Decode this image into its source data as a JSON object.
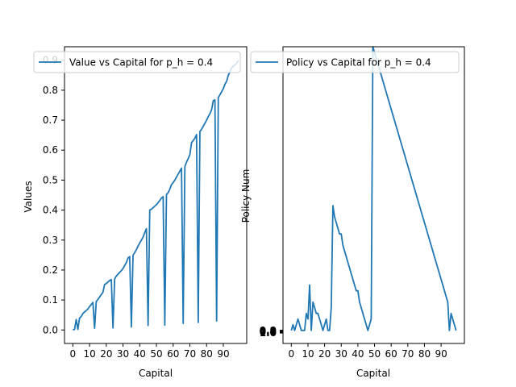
{
  "chart_data": [
    {
      "type": "line",
      "xlabel": "Capital",
      "ylabel": "Values",
      "xlim": [
        -5,
        104
      ],
      "ylim": [
        -0.045,
        0.945
      ],
      "xticks": [
        0,
        10,
        20,
        30,
        40,
        50,
        60,
        70,
        80,
        90
      ],
      "yticks": [
        0.0,
        0.1,
        0.2,
        0.3,
        0.4,
        0.5,
        0.6,
        0.7,
        0.8,
        0.9
      ],
      "ytick_labels": [
        "0.0",
        "0.1",
        "0.2",
        "0.3",
        "0.4",
        "0.5",
        "0.6",
        "0.7",
        "0.8",
        "0.9"
      ],
      "legend_position": "top",
      "color": "#1f77b4",
      "series": [
        {
          "name": "Value vs Capital for p_h = 0.4",
          "x": [
            0,
            1,
            2,
            3,
            4,
            5,
            6,
            7,
            8,
            9,
            10,
            11,
            12,
            13,
            14,
            15,
            16,
            17,
            18,
            19,
            20,
            21,
            22,
            23,
            24,
            25,
            26,
            27,
            28,
            29,
            30,
            31,
            32,
            33,
            34,
            35,
            36,
            37,
            38,
            39,
            40,
            41,
            42,
            43,
            44,
            45,
            46,
            47,
            48,
            49,
            50,
            51,
            52,
            53,
            54,
            55,
            56,
            57,
            58,
            59,
            60,
            61,
            62,
            63,
            64,
            65,
            66,
            67,
            68,
            69,
            70,
            71,
            72,
            73,
            74,
            75,
            76,
            77,
            78,
            79,
            80,
            81,
            82,
            83,
            84,
            85,
            86,
            87,
            88,
            89,
            90,
            91,
            92,
            93,
            94,
            95,
            96,
            97,
            98,
            99
          ],
          "y": [
            0.0,
            0.002,
            0.035,
            0.002,
            0.04,
            0.045,
            0.055,
            0.06,
            0.065,
            0.07,
            0.078,
            0.085,
            0.092,
            0.006,
            0.095,
            0.102,
            0.11,
            0.118,
            0.126,
            0.152,
            0.155,
            0.16,
            0.165,
            0.168,
            0.007,
            0.17,
            0.18,
            0.186,
            0.192,
            0.198,
            0.205,
            0.215,
            0.225,
            0.24,
            0.245,
            0.01,
            0.25,
            0.258,
            0.268,
            0.28,
            0.29,
            0.3,
            0.31,
            0.325,
            0.338,
            0.015,
            0.4,
            0.403,
            0.408,
            0.413,
            0.418,
            0.425,
            0.432,
            0.44,
            0.445,
            0.016,
            0.452,
            0.458,
            0.47,
            0.485,
            0.492,
            0.5,
            0.51,
            0.52,
            0.53,
            0.54,
            0.022,
            0.545,
            0.56,
            0.572,
            0.585,
            0.625,
            0.632,
            0.64,
            0.652,
            0.025,
            0.662,
            0.67,
            0.68,
            0.69,
            0.7,
            0.712,
            0.722,
            0.735,
            0.765,
            0.768,
            0.03,
            0.775,
            0.785,
            0.795,
            0.805,
            0.82,
            0.83,
            0.85,
            0.862,
            0.875,
            0.88,
            0.885,
            0.89,
            0.9
          ]
        }
      ]
    },
    {
      "type": "line",
      "xlabel": "Capital",
      "ylabel": "Policy Num",
      "xlim": [
        -5,
        104
      ],
      "ylim": [
        -2.3,
        50
      ],
      "xticks": [
        0,
        10,
        20,
        30,
        40,
        50,
        60,
        70,
        80,
        90
      ],
      "ytick_labels": [
        "0.0",
        "0.2",
        "0.4",
        "0.6",
        "0.8",
        "1.0"
      ],
      "legend_position": "top",
      "color": "#1f77b4",
      "series": [
        {
          "name": "Policy vs Capital for p_h = 0.4",
          "x": [
            0,
            1,
            2,
            3,
            4,
            5,
            6,
            7,
            8,
            9,
            10,
            11,
            12,
            13,
            14,
            15,
            16,
            17,
            18,
            19,
            20,
            21,
            22,
            23,
            24,
            25,
            26,
            27,
            28,
            29,
            30,
            31,
            32,
            33,
            34,
            35,
            36,
            37,
            38,
            39,
            40,
            41,
            42,
            43,
            44,
            45,
            46,
            47,
            48,
            49,
            50,
            51,
            52,
            53,
            54,
            55,
            56,
            57,
            58,
            59,
            60,
            61,
            62,
            63,
            64,
            65,
            66,
            67,
            68,
            69,
            70,
            71,
            72,
            73,
            74,
            75,
            76,
            77,
            78,
            79,
            80,
            81,
            82,
            83,
            84,
            85,
            86,
            87,
            88,
            89,
            90,
            91,
            92,
            93,
            94,
            95,
            96,
            97,
            98,
            99
          ],
          "y": [
            0,
            1,
            0,
            1,
            2,
            1,
            0,
            0,
            0,
            3,
            2,
            8,
            0,
            5,
            4,
            3,
            3,
            2,
            1,
            0,
            1,
            2,
            0,
            0,
            4,
            22,
            20,
            19,
            18,
            17,
            17,
            15,
            14,
            13,
            12,
            11,
            10,
            9,
            8,
            7,
            7,
            5,
            4,
            3,
            2,
            1,
            0,
            1,
            2,
            50,
            49,
            48,
            47,
            46,
            45,
            44,
            43,
            42,
            41,
            40,
            39,
            38,
            37,
            36,
            35,
            34,
            33,
            32,
            31,
            30,
            29,
            28,
            27,
            26,
            25,
            24,
            23,
            22,
            21,
            20,
            19,
            18,
            17,
            16,
            15,
            14,
            13,
            12,
            11,
            10,
            9,
            8,
            7,
            6,
            5,
            0,
            3,
            2,
            1,
            0
          ]
        }
      ]
    }
  ]
}
